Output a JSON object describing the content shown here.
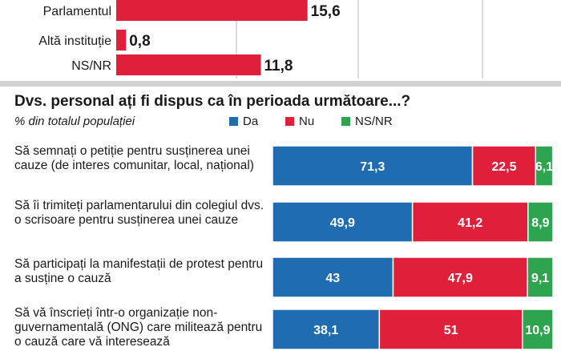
{
  "top_chart": {
    "type": "bar",
    "categories": [
      "Parlamentul",
      "Altă instituție",
      "NS/NR"
    ],
    "values": [
      15.6,
      0.8,
      11.8
    ],
    "value_labels": [
      "15,6",
      "0,8",
      "11,8"
    ],
    "color": "#e0203a"
  },
  "main_chart": {
    "title": "Dvs. personal ați fi dispus ca în perioada următoare...?",
    "unit_label": "% din totalul populației",
    "legend": [
      {
        "name": "Da",
        "color": "#1f6db0"
      },
      {
        "name": "Nu",
        "color": "#e0203a"
      },
      {
        "name": "NS/NR",
        "color": "#2ea44f"
      }
    ]
  },
  "chart_data": [
    {
      "type": "bar",
      "orientation": "horizontal",
      "categories": [
        "Parlamentul",
        "Altă instituție",
        "NS/NR"
      ],
      "values": [
        15.6,
        0.8,
        11.8
      ]
    },
    {
      "type": "bar",
      "orientation": "horizontal",
      "stacked": true,
      "title": "Dvs. personal ați fi dispus ca în perioada următoare...?",
      "ylabel": "% din totalul populației",
      "categories": [
        "Să semnați o petiție pentru susținerea unei cauze (de interes comunitar, local, național)",
        "Să îi trimiteți parlamentarului din colegiul dvs. o scrisoare pentru susținerea unei cauze",
        "Să participați la manifestații de protest pentru a susține o cauză",
        "Să vă înscrieți într-o organizație non-guvernamentală (ONG) care militează pentru o cauză care vă interesează"
      ],
      "series": [
        {
          "name": "Da",
          "values": [
            71.3,
            49.9,
            43,
            38.1
          ],
          "labels": [
            "71,3",
            "49,9",
            "43",
            "38,1"
          ]
        },
        {
          "name": "Nu",
          "values": [
            22.5,
            41.2,
            47.9,
            51
          ],
          "labels": [
            "22,5",
            "41,2",
            "47,9",
            "51"
          ]
        },
        {
          "name": "NS/NR",
          "values": [
            6.1,
            8.9,
            9.1,
            10.9
          ],
          "labels": [
            "6,1",
            "8,9",
            "9,1",
            "10,9"
          ]
        }
      ],
      "legend": "top",
      "xlim": [
        0,
        100
      ]
    }
  ]
}
